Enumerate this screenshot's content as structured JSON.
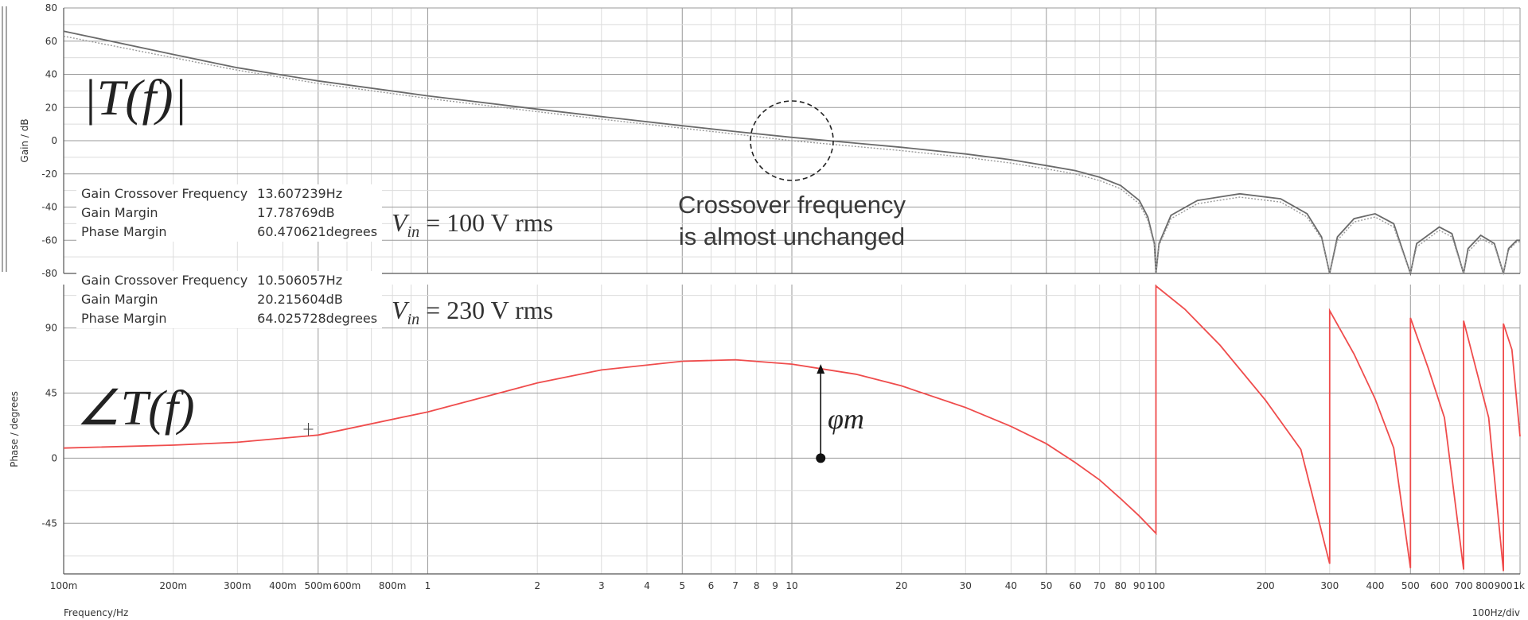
{
  "chart_data": [
    {
      "type": "line",
      "panel": "magnitude",
      "title": "",
      "ylabel": "Gain / dB",
      "xlabel": "",
      "xscale": "log",
      "xlim": [
        0.1,
        1000
      ],
      "ylim": [
        -80,
        80
      ],
      "yticks": [
        80,
        60,
        40,
        20,
        0,
        -20,
        -40,
        -60,
        -80
      ],
      "grid": true,
      "math_label": "|T(f)|",
      "annotation": {
        "text_line1": "Crossover frequency",
        "text_line2": "is almost unchanged",
        "circle_at": [
          10,
          0
        ]
      },
      "series": [
        {
          "style": "solid",
          "color": "#6a6a6a",
          "points": [
            [
              0.1,
              66
            ],
            [
              0.2,
              52
            ],
            [
              0.3,
              44
            ],
            [
              0.5,
              36
            ],
            [
              1,
              27
            ],
            [
              2,
              19
            ],
            [
              3,
              14.5
            ],
            [
              5,
              9
            ],
            [
              7,
              5.5
            ],
            [
              10,
              2
            ],
            [
              15,
              -1.5
            ],
            [
              20,
              -4
            ],
            [
              30,
              -8
            ],
            [
              40,
              -11.5
            ],
            [
              50,
              -15
            ],
            [
              60,
              -18
            ],
            [
              70,
              -22
            ],
            [
              80,
              -27
            ],
            [
              90,
              -36
            ],
            [
              95,
              -46
            ],
            [
              99,
              -62
            ],
            [
              100,
              -80
            ],
            [
              102,
              -62
            ],
            [
              110,
              -45
            ],
            [
              130,
              -36
            ],
            [
              170,
              -32
            ],
            [
              220,
              -35
            ],
            [
              260,
              -44
            ],
            [
              285,
              -58
            ],
            [
              300,
              -80
            ],
            [
              315,
              -58
            ],
            [
              350,
              -47
            ],
            [
              400,
              -44
            ],
            [
              450,
              -50
            ],
            [
              500,
              -80
            ],
            [
              520,
              -62
            ],
            [
              600,
              -52
            ],
            [
              650,
              -56
            ],
            [
              700,
              -80
            ],
            [
              720,
              -65
            ],
            [
              780,
              -57
            ],
            [
              850,
              -62
            ],
            [
              900,
              -80
            ],
            [
              930,
              -65
            ],
            [
              980,
              -60
            ],
            [
              1000,
              -60
            ]
          ]
        },
        {
          "style": "dotted",
          "color": "#9a9a9a",
          "points": [
            [
              0.1,
              63
            ],
            [
              0.2,
              50
            ],
            [
              0.3,
              42.5
            ],
            [
              0.5,
              34.5
            ],
            [
              1,
              25.5
            ],
            [
              2,
              17.5
            ],
            [
              3,
              13
            ],
            [
              5,
              7.5
            ],
            [
              7,
              4
            ],
            [
              10,
              0
            ],
            [
              15,
              -3.5
            ],
            [
              20,
              -6
            ],
            [
              30,
              -10
            ],
            [
              40,
              -13.5
            ],
            [
              50,
              -17
            ],
            [
              60,
              -20
            ],
            [
              70,
              -24
            ],
            [
              80,
              -29
            ],
            [
              90,
              -38
            ],
            [
              95,
              -48
            ],
            [
              99,
              -63
            ],
            [
              100,
              -80
            ],
            [
              102,
              -63
            ],
            [
              110,
              -47
            ],
            [
              130,
              -38
            ],
            [
              170,
              -34
            ],
            [
              220,
              -37
            ],
            [
              260,
              -46
            ],
            [
              285,
              -59
            ],
            [
              300,
              -80
            ],
            [
              315,
              -60
            ],
            [
              350,
              -49
            ],
            [
              400,
              -46
            ],
            [
              450,
              -52
            ],
            [
              500,
              -80
            ],
            [
              520,
              -64
            ],
            [
              600,
              -54
            ],
            [
              650,
              -58
            ],
            [
              700,
              -80
            ],
            [
              720,
              -67
            ],
            [
              780,
              -59
            ],
            [
              850,
              -63
            ],
            [
              900,
              -80
            ],
            [
              930,
              -66
            ],
            [
              980,
              -61
            ],
            [
              1000,
              -61
            ]
          ]
        }
      ]
    },
    {
      "type": "line",
      "panel": "phase",
      "title": "",
      "ylabel": "Phase / degrees",
      "xlabel": "Frequency/Hz",
      "x_div_label": "100Hz/div",
      "xscale": "log",
      "xlim": [
        0.1,
        1000
      ],
      "ylim": [
        -80,
        120
      ],
      "yticks": [
        90,
        45,
        0,
        -45
      ],
      "grid": true,
      "math_label": "∠T(f)",
      "phase_margin_label": "φm",
      "phase_margin_at_freq": 12,
      "xtick_labels": [
        {
          "f": 0.1,
          "t": "100m"
        },
        {
          "f": 0.2,
          "t": "200m"
        },
        {
          "f": 0.3,
          "t": "300m"
        },
        {
          "f": 0.4,
          "t": "400m"
        },
        {
          "f": 0.5,
          "t": "500m"
        },
        {
          "f": 0.6,
          "t": "600m"
        },
        {
          "f": 0.8,
          "t": "800m"
        },
        {
          "f": 1,
          "t": "1"
        },
        {
          "f": 2,
          "t": "2"
        },
        {
          "f": 3,
          "t": "3"
        },
        {
          "f": 4,
          "t": "4"
        },
        {
          "f": 5,
          "t": "5"
        },
        {
          "f": 6,
          "t": "6"
        },
        {
          "f": 7,
          "t": "7"
        },
        {
          "f": 8,
          "t": "8"
        },
        {
          "f": 9,
          "t": "9"
        },
        {
          "f": 10,
          "t": "10"
        },
        {
          "f": 20,
          "t": "20"
        },
        {
          "f": 30,
          "t": "30"
        },
        {
          "f": 40,
          "t": "40"
        },
        {
          "f": 50,
          "t": "50"
        },
        {
          "f": 60,
          "t": "60"
        },
        {
          "f": 70,
          "t": "70"
        },
        {
          "f": 80,
          "t": "80"
        },
        {
          "f": 90,
          "t": "90"
        },
        {
          "f": 100,
          "t": "100"
        },
        {
          "f": 200,
          "t": "200"
        },
        {
          "f": 300,
          "t": "300"
        },
        {
          "f": 400,
          "t": "400"
        },
        {
          "f": 500,
          "t": "500"
        },
        {
          "f": 600,
          "t": "600"
        },
        {
          "f": 700,
          "t": "700"
        },
        {
          "f": 800,
          "t": "800"
        },
        {
          "f": 900,
          "t": "900"
        },
        {
          "f": 1000,
          "t": "1k"
        }
      ],
      "series": [
        {
          "style": "solid",
          "color": "#ef4c4c",
          "points": [
            [
              0.1,
              7
            ],
            [
              0.2,
              9
            ],
            [
              0.3,
              11
            ],
            [
              0.5,
              16
            ],
            [
              1,
              32
            ],
            [
              2,
              52
            ],
            [
              3,
              61
            ],
            [
              5,
              67
            ],
            [
              7,
              68
            ],
            [
              10,
              65
            ],
            [
              15,
              58
            ],
            [
              20,
              50
            ],
            [
              30,
              35
            ],
            [
              40,
              22
            ],
            [
              50,
              10
            ],
            [
              60,
              -3
            ],
            [
              70,
              -15
            ],
            [
              80,
              -28
            ],
            [
              90,
              -40
            ],
            [
              100,
              -52
            ],
            [
              100,
              119
            ],
            [
              120,
              103
            ],
            [
              150,
              78
            ],
            [
              200,
              40
            ],
            [
              250,
              6
            ],
            [
              300,
              -73
            ],
            [
              300,
              102
            ],
            [
              350,
              72
            ],
            [
              400,
              41
            ],
            [
              450,
              7
            ],
            [
              500,
              -76
            ],
            [
              500,
              97
            ],
            [
              560,
              62
            ],
            [
              620,
              28
            ],
            [
              700,
              -77
            ],
            [
              700,
              95
            ],
            [
              760,
              60
            ],
            [
              820,
              28
            ],
            [
              900,
              -78
            ],
            [
              900,
              93
            ],
            [
              950,
              75
            ],
            [
              1000,
              15
            ]
          ]
        }
      ]
    }
  ],
  "info_boxes": [
    {
      "rows": [
        {
          "label": "Gain Crossover Frequency",
          "value": "13.607239Hz"
        },
        {
          "label": "Gain Margin",
          "value": "17.78769dB"
        },
        {
          "label": "Phase Margin",
          "value": "60.470621degrees"
        }
      ]
    },
    {
      "rows": [
        {
          "label": "Gain Crossover Frequency",
          "value": "10.506057Hz"
        },
        {
          "label": "Gain Margin",
          "value": "20.215604dB"
        },
        {
          "label": "Phase Margin",
          "value": "64.025728degrees"
        }
      ]
    }
  ],
  "vin_labels": [
    {
      "symbol": "V",
      "subscript": "in",
      "text": " = 100 V rms"
    },
    {
      "symbol": "V",
      "subscript": "in",
      "text": " = 230 V rms"
    }
  ]
}
